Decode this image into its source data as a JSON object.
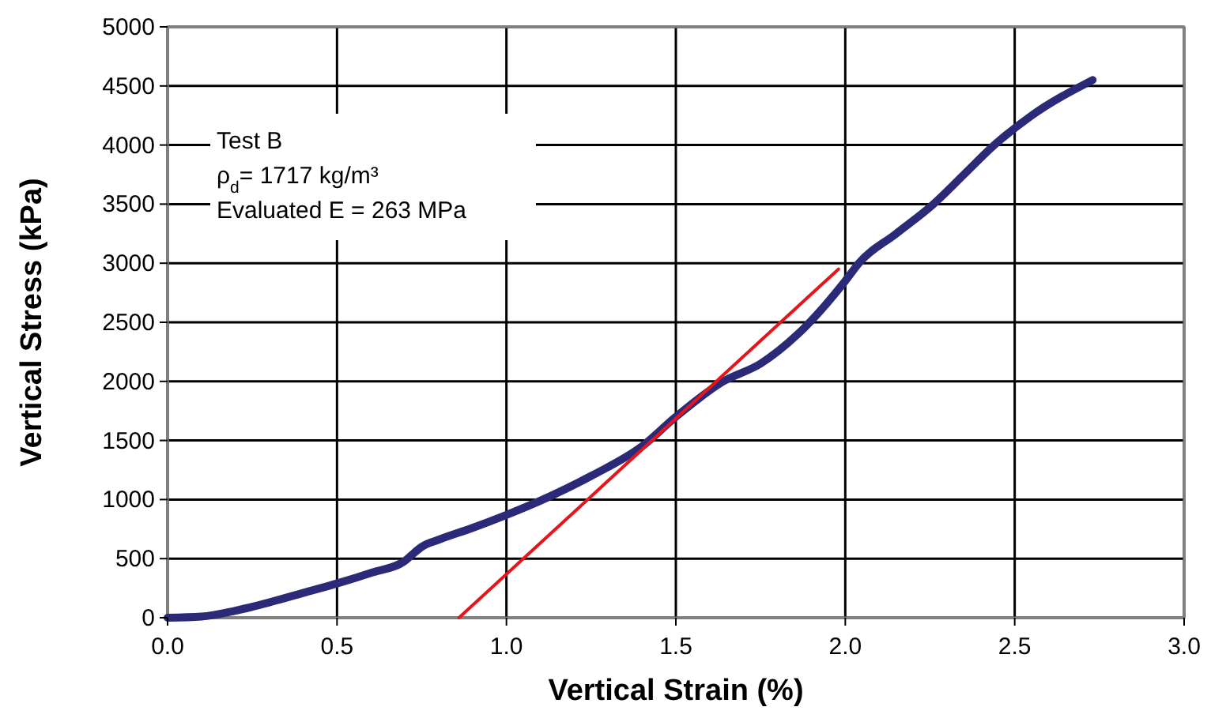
{
  "chart_data": {
    "type": "line",
    "xlabel": "Vertical Strain (%)",
    "ylabel": "Vertical Stress (kPa)",
    "xlim": [
      0,
      3
    ],
    "xticks": [
      {
        "value": 0,
        "label": "0.0"
      },
      {
        "value": 0.5,
        "label": "0.5"
      },
      {
        "value": 1,
        "label": "1.0"
      },
      {
        "value": 1.5,
        "label": "1.5"
      },
      {
        "value": 2,
        "label": "2.0"
      },
      {
        "value": 2.5,
        "label": "2.5"
      },
      {
        "value": 3,
        "label": "3.0"
      }
    ],
    "ylim": [
      0,
      5000
    ],
    "yticks": [
      0,
      500,
      1000,
      1500,
      2000,
      2500,
      3000,
      3500,
      4000,
      4500,
      5000
    ],
    "grid": true,
    "annotations": [
      "Test B",
      "ρ$_{d}$= 1717 kg/m³",
      "Evaluated E = 263 MPa"
    ],
    "series": [
      {
        "color": "#2b2a78",
        "x": [
          0,
          0.1,
          0.2,
          0.3,
          0.4,
          0.5,
          0.6,
          0.7,
          0.72,
          0.75,
          0.8,
          0.9,
          1.0,
          1.1,
          1.25,
          1.4,
          1.5,
          1.64,
          1.75,
          1.86,
          2.0,
          2.04,
          2.15,
          2.26,
          2.35,
          2.44,
          2.55,
          2.73
        ],
        "values": [
          0,
          10,
          60,
          130,
          210,
          290,
          380,
          480,
          530,
          600,
          660,
          760,
          870,
          990,
          1200,
          1450,
          1700,
          2000,
          2150,
          2400,
          2850,
          3000,
          3250,
          3500,
          3750,
          4000,
          4250,
          4550
        ]
      },
      {
        "color": "#e8141c",
        "x": [
          0.86,
          1.98
        ],
        "values": [
          0,
          2950
        ]
      }
    ]
  }
}
